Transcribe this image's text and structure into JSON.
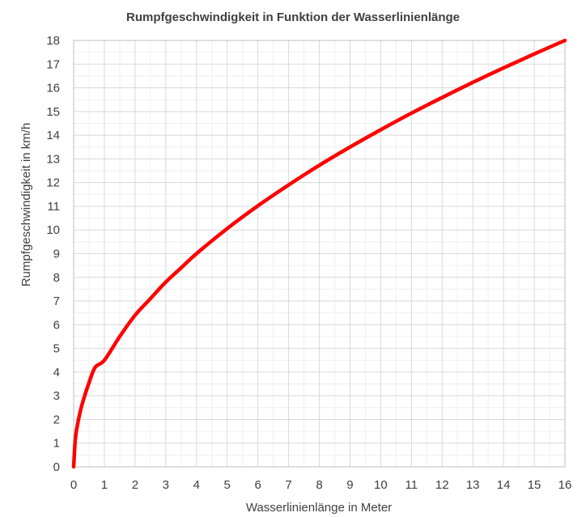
{
  "chart_data": {
    "type": "line",
    "title": "Rumpfgeschwindigkeit in Funktion der Wasserlinienlänge",
    "xlabel": "Wasserlinienlänge in Meter",
    "ylabel": "Rumpfgeschwindigkeit in km/h",
    "xlim": [
      0,
      16
    ],
    "ylim": [
      0,
      18
    ],
    "x_ticks": [
      0,
      1,
      2,
      3,
      4,
      5,
      6,
      7,
      8,
      9,
      10,
      11,
      12,
      13,
      14,
      15,
      16
    ],
    "y_ticks": [
      0,
      1,
      2,
      3,
      4,
      5,
      6,
      7,
      8,
      9,
      10,
      11,
      12,
      13,
      14,
      15,
      16,
      17,
      18
    ],
    "grid": true,
    "minor_grid": true,
    "legend": "none",
    "series": [
      {
        "color": "#ff0000",
        "x": [
          0,
          0.05,
          0.1,
          0.2,
          0.3,
          0.5,
          0.7,
          1,
          1.5,
          2,
          2.5,
          3,
          3.5,
          4,
          5,
          6,
          7,
          8,
          9,
          10,
          11,
          12,
          13,
          14,
          15,
          16
        ],
        "y": [
          0,
          1.1,
          1.6,
          2.25,
          2.75,
          3.55,
          4.2,
          4.5,
          5.5,
          6.4,
          7.1,
          7.8,
          8.4,
          9.0,
          10.06,
          11.02,
          11.9,
          12.73,
          13.5,
          14.23,
          14.93,
          15.59,
          16.23,
          16.84,
          17.43,
          18.0
        ]
      }
    ]
  }
}
